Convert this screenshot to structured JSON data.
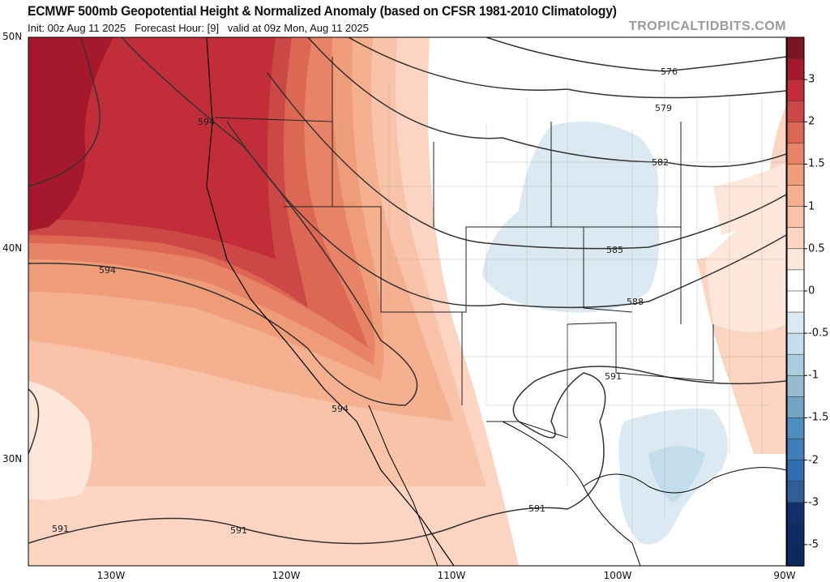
{
  "header": {
    "title": "ECMWF 500mb Geopotential Height & Normalized Anomaly (based on CFSR 1981-2010 Climatology)",
    "subtitle": "Init: 00z Aug 11 2025   Forecast Hour: [9]   valid at 09z Mon, Aug 11 2025",
    "watermark": "TROPICALTIDBITS.COM"
  },
  "map": {
    "lat_labels": [
      "50N",
      "40N",
      "30N"
    ],
    "lon_labels": [
      "130W",
      "120W",
      "110W",
      "100W",
      "90W"
    ],
    "contour_labels": [
      "576",
      "579",
      "582",
      "585",
      "588",
      "591",
      "591",
      "591",
      "591",
      "594",
      "594",
      "594"
    ]
  },
  "colorbar": {
    "labels": [
      "3",
      "2",
      "1.5",
      "1",
      "0.5",
      "0",
      "-0.5",
      "-1",
      "-1.5",
      "-2",
      "-3",
      "-5"
    ],
    "colors": [
      "#7b1521",
      "#a6182b",
      "#c12d38",
      "#cc4846",
      "#dc6853",
      "#e78366",
      "#ef9c79",
      "#f4b08f",
      "#f8c3a8",
      "#fbd5c1",
      "#fde6da",
      "#ffffff",
      "#ffffff",
      "#dbeaf2",
      "#c3deea",
      "#a9cde0",
      "#98bccf",
      "#74a4c4",
      "#4f8fc0",
      "#3e7fb9",
      "#2f6daf",
      "#305f97",
      "#10306a",
      "#0c2c63",
      "#0b2a5e"
    ]
  }
}
